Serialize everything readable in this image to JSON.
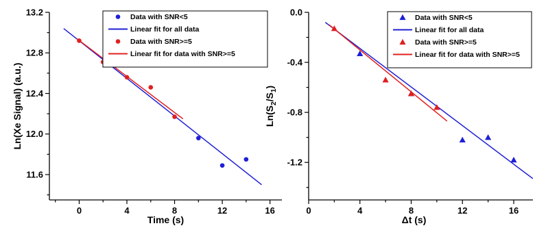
{
  "chart_data": [
    {
      "type": "scatter",
      "xlabel": "Time (s)",
      "ylabel": "Ln(Xe Signal) (a.u.)",
      "xlim": [
        -2.5,
        17
      ],
      "ylim": [
        11.35,
        13.2
      ],
      "xticks": [
        0,
        4,
        8,
        12,
        16
      ],
      "yticks": [
        11.6,
        12.0,
        12.4,
        12.8,
        13.2
      ],
      "marker": "circle",
      "grid": false,
      "legend_position": "top-right",
      "series": [
        {
          "name": "Data with SNR<5",
          "kind": "points",
          "color": "#1f1fd6",
          "x": [
            10,
            12,
            14
          ],
          "y": [
            11.96,
            11.69,
            11.75
          ]
        },
        {
          "name": "Linear fit for all data",
          "kind": "line",
          "color": "#1f1fd6",
          "x": [
            -1.3,
            15.3
          ],
          "y": [
            13.04,
            11.5
          ]
        },
        {
          "name": "Data with SNR>=5",
          "kind": "points",
          "color": "#e02020",
          "x": [
            0,
            2,
            4,
            6,
            8
          ],
          "y": [
            12.92,
            12.71,
            12.56,
            12.46,
            12.17
          ]
        },
        {
          "name": "Linear fit for data with SNR>=5",
          "kind": "line",
          "color": "#e02020",
          "x": [
            -0.2,
            8.7
          ],
          "y": [
            12.94,
            12.15
          ]
        }
      ]
    },
    {
      "type": "scatter",
      "xlabel": "Δt (s)",
      "ylabel": "Ln(S2/S1)",
      "xlim": [
        0,
        17.5
      ],
      "ylim": [
        -1.5,
        0.0
      ],
      "xticks": [
        0,
        4,
        8,
        12,
        16
      ],
      "yticks": [
        0.0,
        -0.4,
        -0.8,
        -1.2
      ],
      "marker": "triangle",
      "grid": false,
      "legend_position": "top-right",
      "series": [
        {
          "name": "Data with SNR<5",
          "kind": "points",
          "color": "#1f1fd6",
          "x": [
            4,
            8,
            12,
            14,
            16
          ],
          "y": [
            -0.33,
            -0.65,
            -1.02,
            -1.0,
            -1.18
          ]
        },
        {
          "name": "Linear fit for all data",
          "kind": "line",
          "color": "#1f1fd6",
          "x": [
            1.3,
            17.5
          ],
          "y": [
            -0.08,
            -1.33
          ]
        },
        {
          "name": "Data with SNR>=5",
          "kind": "points",
          "color": "#e02020",
          "x": [
            2,
            6,
            8,
            10
          ],
          "y": [
            -0.13,
            -0.54,
            -0.65,
            -0.76
          ]
        },
        {
          "name": "Linear fit for data with SNR>=5",
          "kind": "line",
          "color": "#e02020",
          "x": [
            1.6,
            10.8
          ],
          "y": [
            -0.1,
            -0.87
          ]
        }
      ]
    }
  ]
}
